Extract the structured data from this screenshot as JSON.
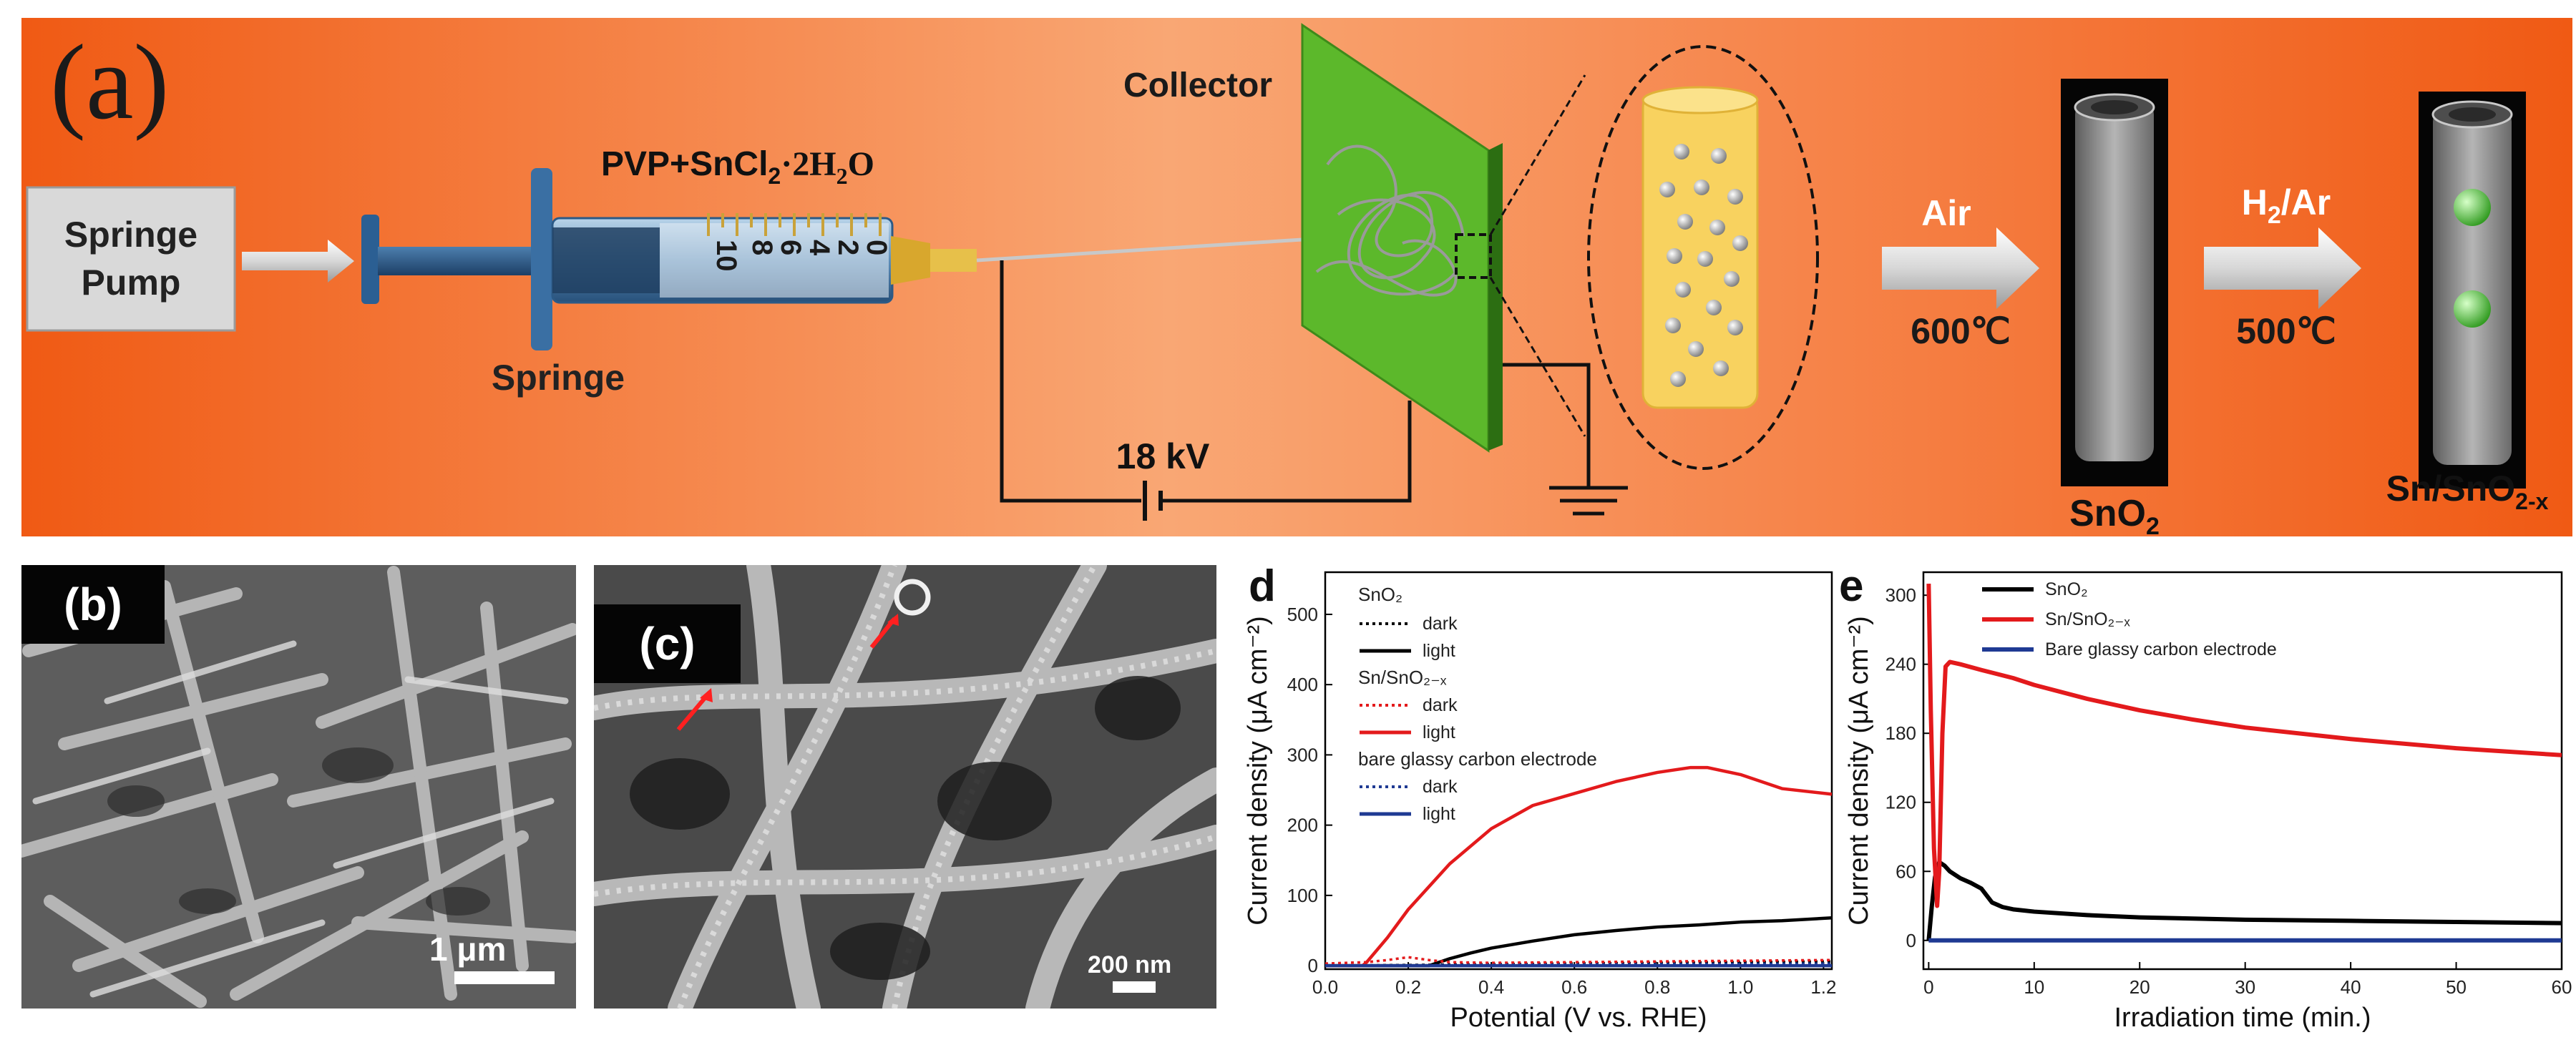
{
  "panel_a": {
    "label": "(a)",
    "pump_line1": "Springe",
    "pump_line2": "Pump",
    "syringe_label": "Springe",
    "solution_label_main": "PVP+SnCl",
    "solution_label_sub": "2",
    "solution_label_tail": "·2H",
    "solution_label_sub2": "2",
    "solution_label_end": "O",
    "syringe_marks": [
      "0",
      "2",
      "4",
      "6",
      "8",
      "10"
    ],
    "collector_label": "Collector",
    "voltage_label": "18 kV",
    "step1_gas": "Air",
    "step1_temp": "600℃",
    "product1_main": "SnO",
    "product1_sub": "2",
    "step2_gas_main": "H",
    "step2_gas_sub": "2",
    "step2_gas_tail": "/Ar",
    "step2_temp": "500℃",
    "product2_main": "Sn/SnO",
    "product2_sub": "2-x"
  },
  "panel_b": {
    "label": "(b)",
    "scale": "1 μm"
  },
  "panel_c": {
    "label": "(c)",
    "scale": "200 nm"
  },
  "colors": {
    "orange_bg": "#f3762e",
    "green": "#5cb82b",
    "black": "#000000",
    "red": "#e31a1c",
    "blue": "#1f3a93"
  },
  "chart_data": [
    {
      "panel": "d",
      "type": "line",
      "xlabel": "Potential (V vs. RHE)",
      "ylabel": "Current density (μA cm⁻²)",
      "xlim": [
        0.0,
        1.22
      ],
      "ylim": [
        -5,
        560
      ],
      "xticks": [
        "0.0",
        "0.2",
        "0.4",
        "0.6",
        "0.8",
        "1.0",
        "1.2"
      ],
      "yticks": [
        "0",
        "100",
        "200",
        "300",
        "400",
        "500"
      ],
      "legend_groups": [
        "SnO₂",
        "Sn/SnO₂₋ₓ",
        "bare glassy carbon electrode"
      ],
      "legend_items": [
        "dark",
        "light"
      ],
      "series": [
        {
          "name": "SnO₂ dark",
          "color": "#000000",
          "dash": true,
          "x": [
            0.0,
            0.2,
            0.4,
            0.6,
            0.8,
            1.0,
            1.22
          ],
          "y": [
            0,
            1,
            2,
            3,
            4,
            5,
            6
          ]
        },
        {
          "name": "SnO₂ light",
          "color": "#000000",
          "dash": false,
          "x": [
            0.0,
            0.25,
            0.3,
            0.35,
            0.4,
            0.5,
            0.6,
            0.7,
            0.8,
            0.9,
            1.0,
            1.1,
            1.22
          ],
          "y": [
            0,
            0,
            10,
            18,
            25,
            35,
            44,
            50,
            55,
            58,
            62,
            64,
            68
          ]
        },
        {
          "name": "Sn/SnO₂₋ₓ dark",
          "color": "#e31a1c",
          "dash": true,
          "x": [
            0.0,
            0.1,
            0.15,
            0.2,
            0.25,
            0.3,
            0.4,
            0.6,
            0.8,
            1.0,
            1.22
          ],
          "y": [
            3,
            5,
            8,
            12,
            8,
            5,
            4,
            5,
            6,
            7,
            8
          ]
        },
        {
          "name": "Sn/SnO₂₋ₓ light",
          "color": "#e31a1c",
          "dash": false,
          "x": [
            0.0,
            0.09,
            0.1,
            0.15,
            0.2,
            0.3,
            0.4,
            0.5,
            0.6,
            0.7,
            0.8,
            0.88,
            0.92,
            1.0,
            1.1,
            1.22
          ],
          "y": [
            0,
            0,
            5,
            40,
            80,
            145,
            195,
            228,
            245,
            262,
            275,
            282,
            282,
            272,
            252,
            244
          ]
        },
        {
          "name": "bare dark",
          "color": "#1f3a93",
          "dash": true,
          "x": [
            0.0,
            0.4,
            0.8,
            1.22
          ],
          "y": [
            0,
            1,
            2,
            3
          ]
        },
        {
          "name": "bare light",
          "color": "#1f3a93",
          "dash": false,
          "x": [
            0.0,
            0.4,
            0.8,
            1.22
          ],
          "y": [
            0,
            0,
            0,
            0
          ]
        }
      ]
    },
    {
      "panel": "e",
      "type": "line",
      "xlabel": "Irradiation time (min.)",
      "ylabel": "Current density (μA cm⁻²)",
      "xlim": [
        -0.5,
        60
      ],
      "ylim": [
        -25,
        320
      ],
      "xticks": [
        "0",
        "10",
        "20",
        "30",
        "40",
        "50",
        "60"
      ],
      "yticks": [
        "0",
        "60",
        "120",
        "180",
        "240",
        "300"
      ],
      "series": [
        {
          "name": "SnO₂",
          "color": "#000000",
          "x": [
            0,
            0.3,
            0.6,
            1,
            1.5,
            2,
            3,
            4,
            5,
            6,
            7,
            8,
            10,
            15,
            20,
            30,
            40,
            50,
            60
          ],
          "y": [
            0,
            30,
            55,
            68,
            65,
            60,
            54,
            50,
            45,
            33,
            29,
            27,
            25,
            22,
            20,
            18,
            17,
            16,
            15
          ]
        },
        {
          "name": "Sn/SnO₂₋ₓ",
          "color": "#e31a1c",
          "x": [
            0,
            0.2,
            0.5,
            0.8,
            1,
            1.3,
            1.6,
            2,
            3,
            5,
            8,
            10,
            15,
            20,
            25,
            30,
            40,
            50,
            60
          ],
          "y": [
            310,
            200,
            80,
            30,
            60,
            180,
            238,
            242,
            240,
            235,
            228,
            222,
            210,
            200,
            192,
            185,
            175,
            167,
            161
          ]
        },
        {
          "name": "Bare glassy carbon electrode",
          "color": "#1f3a93",
          "x": [
            0,
            60
          ],
          "y": [
            0,
            0
          ]
        }
      ]
    }
  ]
}
